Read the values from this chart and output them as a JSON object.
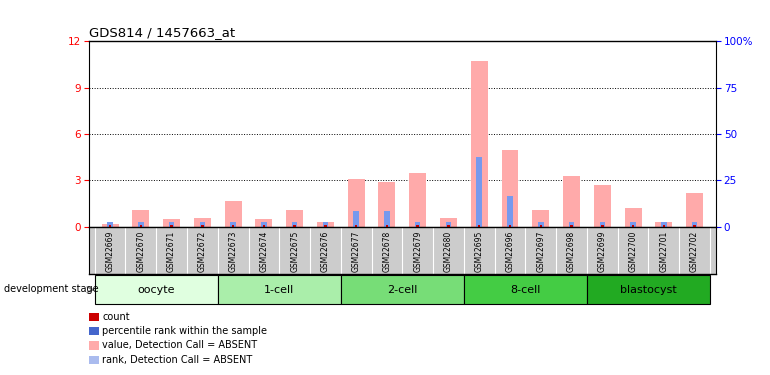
{
  "title": "GDS814 / 1457663_at",
  "samples": [
    "GSM22669",
    "GSM22670",
    "GSM22671",
    "GSM22672",
    "GSM22673",
    "GSM22674",
    "GSM22675",
    "GSM22676",
    "GSM22677",
    "GSM22678",
    "GSM22679",
    "GSM22680",
    "GSM22695",
    "GSM22696",
    "GSM22697",
    "GSM22698",
    "GSM22699",
    "GSM22700",
    "GSM22701",
    "GSM22702"
  ],
  "pink_values": [
    0.2,
    1.1,
    0.5,
    0.6,
    1.7,
    0.5,
    1.1,
    0.3,
    3.1,
    2.9,
    3.5,
    0.6,
    10.7,
    5.0,
    1.1,
    3.3,
    2.7,
    1.2,
    0.3,
    2.2
  ],
  "blue_values": [
    0.3,
    0.3,
    0.3,
    0.3,
    0.3,
    0.3,
    0.3,
    0.3,
    1.0,
    1.0,
    0.3,
    0.3,
    4.5,
    2.0,
    0.3,
    0.3,
    0.3,
    0.3,
    0.3,
    0.3
  ],
  "red_values": [
    0.12,
    0.12,
    0.12,
    0.12,
    0.12,
    0.12,
    0.12,
    0.12,
    0.12,
    0.12,
    0.12,
    0.12,
    0.12,
    0.12,
    0.12,
    0.12,
    0.12,
    0.12,
    0.12,
    0.12
  ],
  "stages": [
    {
      "label": "oocyte",
      "start": 0,
      "end": 4,
      "color": "#e0ffe0"
    },
    {
      "label": "1-cell",
      "start": 4,
      "end": 8,
      "color": "#aaeeaa"
    },
    {
      "label": "2-cell",
      "start": 8,
      "end": 12,
      "color": "#77dd77"
    },
    {
      "label": "8-cell",
      "start": 12,
      "end": 16,
      "color": "#44cc44"
    },
    {
      "label": "blastocyst",
      "start": 16,
      "end": 20,
      "color": "#22aa22"
    }
  ],
  "ylim_left": [
    0,
    12
  ],
  "ylim_right": [
    0,
    100
  ],
  "yticks_left": [
    0,
    3,
    6,
    9,
    12
  ],
  "yticks_right": [
    0,
    25,
    50,
    75,
    100
  ],
  "pink_color": "#ffaaaa",
  "blue_color": "#7799ee",
  "red_color": "#cc0000",
  "bg_xlabel": "#cccccc",
  "legend_items": [
    {
      "color": "#cc0000",
      "label": "count"
    },
    {
      "color": "#4466cc",
      "label": "percentile rank within the sample"
    },
    {
      "color": "#ffaaaa",
      "label": "value, Detection Call = ABSENT"
    },
    {
      "color": "#aabbee",
      "label": "rank, Detection Call = ABSENT"
    }
  ]
}
